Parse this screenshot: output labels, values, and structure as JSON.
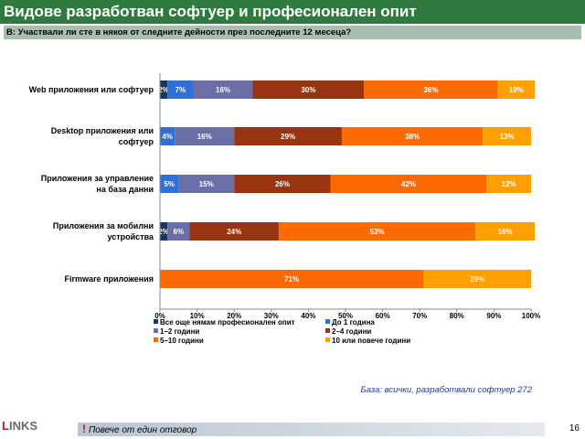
{
  "header": {
    "title": "Видове разработван софтуер и професионален опит",
    "question": "В: Участвали ли сте в някоя от следните дейности през последните 12 месеца?"
  },
  "chart_data": {
    "type": "bar",
    "orientation": "horizontal",
    "stacked": true,
    "categories": [
      "Web приложения или софтуер",
      "Desktop приложения или софтуер",
      "Приложения за управление на база данни",
      "Приложения за мобилни устройства",
      "Firmware приложения"
    ],
    "series": [
      {
        "name": "Все още нямам професионален опит",
        "color": "#17375e",
        "values": [
          2,
          0,
          0,
          2,
          0
        ],
        "labels": [
          "2%",
          "",
          "",
          "2%",
          ""
        ]
      },
      {
        "name": "До 1 година",
        "color": "#2f6fd6",
        "values": [
          7,
          4,
          5,
          0,
          0
        ],
        "labels": [
          "7%",
          "4%",
          "5%",
          "",
          ""
        ]
      },
      {
        "name": "1–2 години",
        "color": "#6a6fa8",
        "values": [
          16,
          16,
          15,
          6,
          0
        ],
        "labels": [
          "16%",
          "16%",
          "15%",
          "6%",
          ""
        ]
      },
      {
        "name": "2–4 години",
        "color": "#983510",
        "values": [
          30,
          29,
          26,
          24,
          0
        ],
        "labels": [
          "30%",
          "29%",
          "26%",
          "24%",
          ""
        ]
      },
      {
        "name": "5–10 години",
        "color": "#ff6a00",
        "values": [
          36,
          38,
          42,
          53,
          71
        ],
        "labels": [
          "36%",
          "38%",
          "42%",
          "53%",
          "71%"
        ]
      },
      {
        "name": "10 или повече години",
        "color": "#ffa000",
        "values": [
          10,
          13,
          12,
          16,
          29
        ],
        "labels": [
          "10%",
          "13%",
          "12%",
          "16%",
          "29%"
        ]
      }
    ],
    "xlim": [
      0,
      100
    ],
    "x_ticks": [
      "0%",
      "10%",
      "20%",
      "30%",
      "40%",
      "50%",
      "60%",
      "70%",
      "80%",
      "90%",
      "100%"
    ],
    "legend_position": "bottom",
    "grid": false
  },
  "footer": {
    "base_note": "База: всички, разработвали софтуер 272",
    "logo_first": "L",
    "logo_rest": "INKS",
    "footnote_mark": "!",
    "footnote_text": "Повече от един отговор",
    "page_number": "16"
  }
}
